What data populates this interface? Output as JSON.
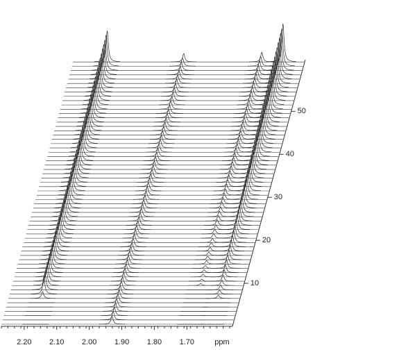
{
  "chart_data": {
    "type": "stacked-spectra",
    "color": "#2a2a2a",
    "xlim": [
      2.27,
      1.56
    ],
    "xticks": [
      {
        "value": 2.2,
        "label": "2.20"
      },
      {
        "value": 2.1,
        "label": "2.10"
      },
      {
        "value": 2.0,
        "label": "2.00"
      },
      {
        "value": 1.9,
        "label": "1.90"
      },
      {
        "value": 1.8,
        "label": "1.80"
      },
      {
        "value": 1.7,
        "label": "1.70"
      }
    ],
    "xlabel": "ppm",
    "zlim": [
      0,
      62
    ],
    "zticks": [
      10,
      20,
      30,
      40,
      50
    ],
    "z": [
      0,
      1,
      2,
      3,
      4,
      5,
      6,
      7,
      8,
      9,
      10,
      11,
      12,
      13,
      14,
      15,
      16,
      17,
      18,
      19,
      20,
      21,
      22,
      23,
      24,
      25,
      26,
      27,
      28,
      29,
      30,
      31,
      32,
      33,
      34,
      35,
      36,
      37,
      38,
      39,
      40,
      41,
      42,
      43,
      44,
      45,
      46,
      47,
      48,
      49,
      50,
      51,
      52,
      53,
      54,
      55,
      56,
      57,
      58,
      59,
      60,
      61
    ],
    "peaks": [
      {
        "ppm": 2.165,
        "width": 0.004,
        "values": [
          0,
          0,
          0,
          0,
          0,
          0,
          10,
          25,
          25,
          26,
          26,
          26,
          27,
          27,
          28,
          28,
          28,
          29,
          29,
          29,
          30,
          30,
          31,
          31,
          31,
          32,
          32,
          32,
          33,
          33,
          34,
          34,
          34,
          35,
          35,
          35,
          36,
          36,
          37,
          37,
          37,
          38,
          38,
          38,
          39,
          39,
          40,
          40,
          40,
          41,
          41,
          41,
          42,
          42,
          43,
          43,
          43,
          44,
          44,
          44,
          45,
          45
        ]
      },
      {
        "ppm": 1.93,
        "width": 0.004,
        "values": [
          12,
          12,
          12,
          12,
          12,
          12,
          12,
          12,
          12,
          12,
          12,
          12,
          12,
          12,
          12,
          12,
          12,
          12,
          12,
          12,
          12,
          12,
          12,
          12,
          12,
          12,
          12,
          12,
          12,
          12,
          12,
          12,
          12,
          12,
          12,
          12,
          12,
          12,
          12,
          12,
          12,
          12,
          12,
          12,
          12,
          12,
          12,
          12,
          12,
          12,
          12,
          12,
          12,
          12,
          12,
          12,
          12,
          12,
          12,
          12,
          12,
          12
        ]
      },
      {
        "ppm": 1.69,
        "width": 0.004,
        "values": [
          0,
          0,
          0,
          0,
          0,
          0,
          0,
          0,
          0,
          3,
          3,
          4,
          4,
          4,
          5,
          5,
          5,
          6,
          6,
          6,
          7,
          7,
          7,
          8,
          8,
          8,
          8,
          9,
          9,
          9,
          9,
          10,
          10,
          10,
          10,
          11,
          11,
          11,
          11,
          12,
          12,
          12,
          12,
          12,
          13,
          13,
          13,
          13,
          13,
          13,
          13,
          14,
          14,
          14,
          14,
          14,
          14,
          14,
          14,
          14,
          14,
          14
        ]
      },
      {
        "ppm": 1.625,
        "width": 0.004,
        "values": [
          0,
          0,
          0,
          0,
          0,
          0,
          5,
          6,
          7,
          8,
          9,
          10,
          11,
          12,
          13,
          14,
          15,
          16,
          17,
          18,
          19,
          20,
          21,
          22,
          23,
          24,
          25,
          26,
          27,
          28,
          29,
          30,
          31,
          32,
          33,
          34,
          35,
          36,
          37,
          38,
          39,
          40,
          41,
          42,
          43,
          44,
          45,
          46,
          47,
          48,
          49,
          50,
          50,
          51,
          51,
          52,
          52,
          53,
          53,
          54,
          54,
          55
        ]
      }
    ]
  }
}
